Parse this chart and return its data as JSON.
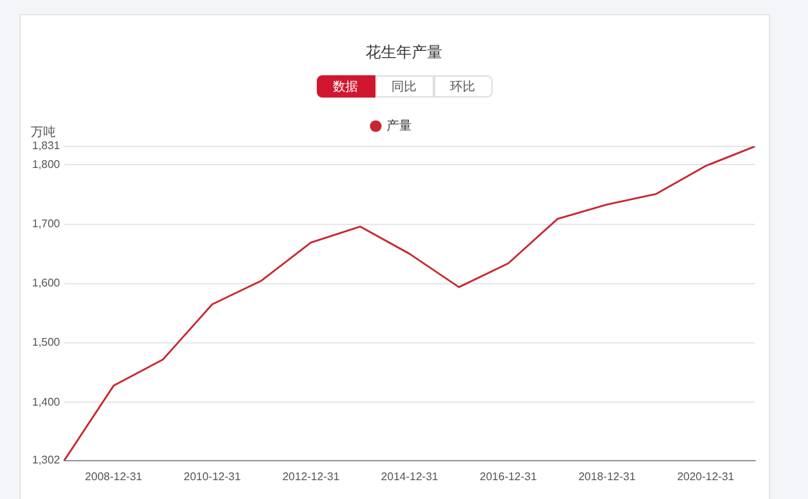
{
  "chart_data": {
    "type": "line",
    "title": "花生年产量",
    "ylabel": "万吨",
    "annotations": [
      "数据",
      "同比",
      "环比"
    ],
    "categories": [
      null,
      "2008-12-31",
      null,
      "2010-12-31",
      null,
      "2012-12-31",
      null,
      "2014-12-31",
      null,
      "2016-12-31",
      null,
      "2018-12-31",
      null,
      "2020-12-31",
      null
    ],
    "series": [
      {
        "name": "产量",
        "color": "#c8262e",
        "values": [
          1302,
          1428,
          1472,
          1565,
          1605,
          1669,
          1696,
          1650,
          1594,
          1634,
          1709,
          1733,
          1751,
          1798,
          1831
        ]
      }
    ],
    "ylim": [
      1302,
      1831
    ],
    "yticks": [
      {
        "value": 1302,
        "label": "1,302"
      },
      {
        "value": 1400,
        "label": "1,400"
      },
      {
        "value": 1500,
        "label": "1,500"
      },
      {
        "value": 1600,
        "label": "1,600"
      },
      {
        "value": 1700,
        "label": "1,700"
      },
      {
        "value": 1800,
        "label": "1,800"
      },
      {
        "value": 1831,
        "label": "1,831"
      }
    ],
    "grid": "y",
    "legend": "top"
  }
}
